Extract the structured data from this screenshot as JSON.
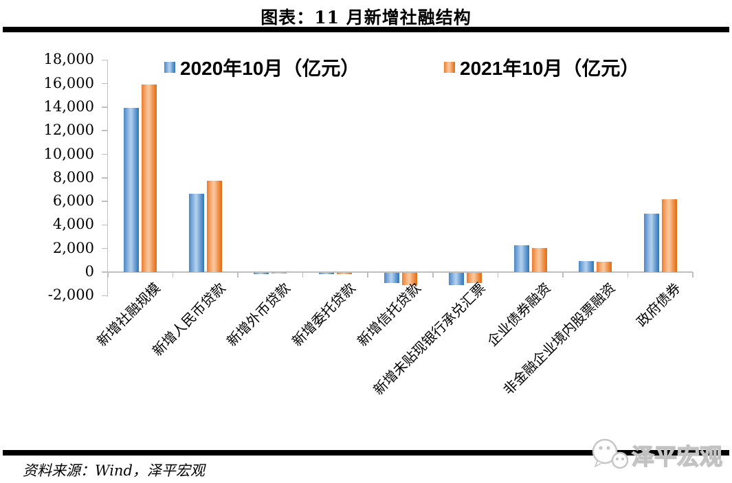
{
  "title": "图表：11 月新增社融结构",
  "source_note": "资料来源：Wind，泽平宏观",
  "watermark": "泽平宏观",
  "colors": {
    "series_blue": "#2E74B5",
    "series_blue_light": "#B5D2EE",
    "series_orange": "#ED7D31",
    "series_orange_light": "#F9C89E",
    "axis": "#BFBFBF",
    "rule": "#000000",
    "watermark_gray": "#C6C6C6"
  },
  "chart_data": {
    "type": "bar",
    "title": "图表：11 月新增社融结构",
    "categories": [
      "新增社融规模",
      "新增人民币贷款",
      "新增外币贷款",
      "新增委托贷款",
      "新增信托贷款",
      "新增未贴现银行承兑汇票",
      "企业债券融资",
      "非金融企业境内股票融资",
      "政府债券"
    ],
    "series": [
      {
        "name": "2020年10月（亿元）",
        "color": "#2E74B5",
        "values": [
          13950,
          6663,
          -122,
          -174,
          -875,
          -1089,
          2300,
          927,
          4931
        ]
      },
      {
        "name": "2021年10月（亿元）",
        "color": "#ED7D31",
        "values": [
          15900,
          7752,
          -34,
          -173,
          -1061,
          -886,
          2030,
          846,
          6167
        ]
      }
    ],
    "xlabel": "",
    "ylabel": "",
    "ylim": [
      -2000,
      18000
    ],
    "ytick_step": 2000,
    "ytick_labels": [
      "18,000",
      "16,000",
      "14,000",
      "12,000",
      "10,000",
      "8,000",
      "6,000",
      "4,000",
      "2,000",
      "0",
      "-2,000"
    ],
    "grid": false,
    "legend_position": "top"
  }
}
